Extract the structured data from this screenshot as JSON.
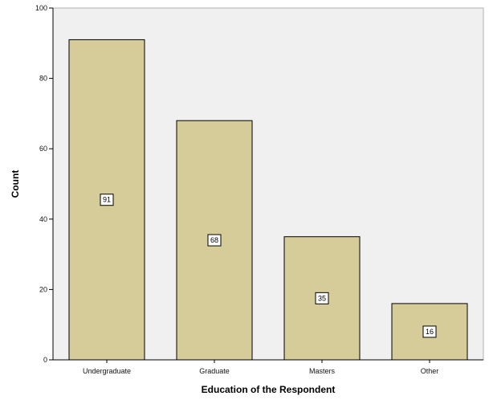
{
  "chart_data": {
    "type": "bar",
    "categories": [
      "Undergraduate",
      "Graduate",
      "Masters",
      "Other"
    ],
    "values": [
      91,
      68,
      35,
      16
    ],
    "data_labels": [
      "91",
      "68",
      "35",
      "16"
    ],
    "xlabel": "Education of the Respondent",
    "ylabel": "Count",
    "ylim": [
      0,
      100
    ],
    "yticks": [
      "0",
      "20",
      "40",
      "60",
      "80",
      "100"
    ],
    "grid": false,
    "legend": "none",
    "colors": {
      "bar_fill": "#d5cc99",
      "bar_stroke": "#000000",
      "plot_background": "#f0f0f0",
      "label_box_fill": "#ffffff"
    }
  }
}
